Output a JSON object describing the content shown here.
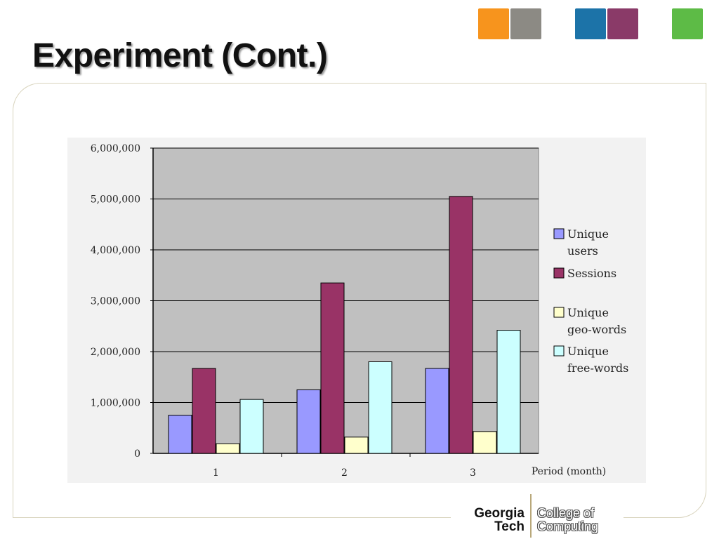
{
  "slide": {
    "title": "Experiment  (Cont.)",
    "logo": {
      "line1": "Georgia",
      "line2": "Tech",
      "line3": "College of",
      "line4": "Computing"
    },
    "tiles": [
      {
        "name": "orange-tile",
        "color": "#f7941d"
      },
      {
        "name": "campus-photo-tile",
        "color": "#8c8a84"
      },
      {
        "name": "blue-tile",
        "color": "#1c73a8"
      },
      {
        "name": "circuit-photo-tile",
        "color": "#8a3a68"
      },
      {
        "name": "green-tile",
        "color": "#5dbb46"
      }
    ]
  },
  "chart_data": {
    "type": "bar",
    "categories": [
      "1",
      "2",
      "3"
    ],
    "xlabel": "Period (month)",
    "ylabel": "",
    "ylim": [
      0,
      6000000
    ],
    "yticks": [
      "0",
      "1,000,000",
      "2,000,000",
      "3,000,000",
      "4,000,000",
      "5,000,000",
      "6,000,000"
    ],
    "grid": true,
    "legend_position": "right",
    "plot_background": "#c0c0c0",
    "series": [
      {
        "name": "Unique users",
        "legend_lines": [
          "Unique",
          "users"
        ],
        "color": "#9999ff",
        "values": [
          750000,
          1250000,
          1670000
        ]
      },
      {
        "name": "Sessions",
        "legend_lines": [
          "Sessions"
        ],
        "color": "#993366",
        "values": [
          1670000,
          3350000,
          5050000
        ]
      },
      {
        "name": "Unique geo-words",
        "legend_lines": [
          "Unique",
          "geo-words"
        ],
        "color": "#ffffcc",
        "values": [
          190000,
          320000,
          430000
        ]
      },
      {
        "name": "Unique free-words",
        "legend_lines": [
          "Unique",
          "free-words"
        ],
        "color": "#ccffff",
        "values": [
          1060000,
          1800000,
          2420000
        ]
      }
    ]
  }
}
